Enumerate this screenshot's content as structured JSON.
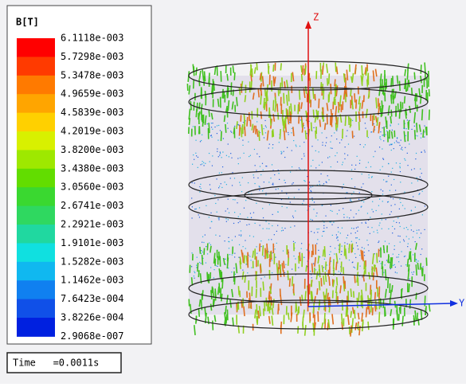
{
  "legend": {
    "title": "B[T]",
    "labels": [
      "6.1118e-003",
      "5.7298e-003",
      "5.3478e-003",
      "4.9659e-003",
      "4.5839e-003",
      "4.2019e-003",
      "3.8200e-003",
      "3.4380e-003",
      "3.0560e-003",
      "2.6741e-003",
      "2.2921e-003",
      "1.9101e-003",
      "1.5282e-003",
      "1.1462e-003",
      "7.6423e-004",
      "3.8226e-004",
      "2.9068e-007"
    ],
    "colors": [
      "#ff0000",
      "#ff3a00",
      "#ff7a00",
      "#ffa500",
      "#ffd000",
      "#d8f000",
      "#9ee800",
      "#62dd00",
      "#3ad830",
      "#2fd860",
      "#20d8a0",
      "#10e0e0",
      "#10b8f0",
      "#1080f0",
      "#1050e8",
      "#0020e0"
    ]
  },
  "time_label": "Time   =0.0011s",
  "axes": {
    "z": "Z",
    "y": "Y"
  }
}
